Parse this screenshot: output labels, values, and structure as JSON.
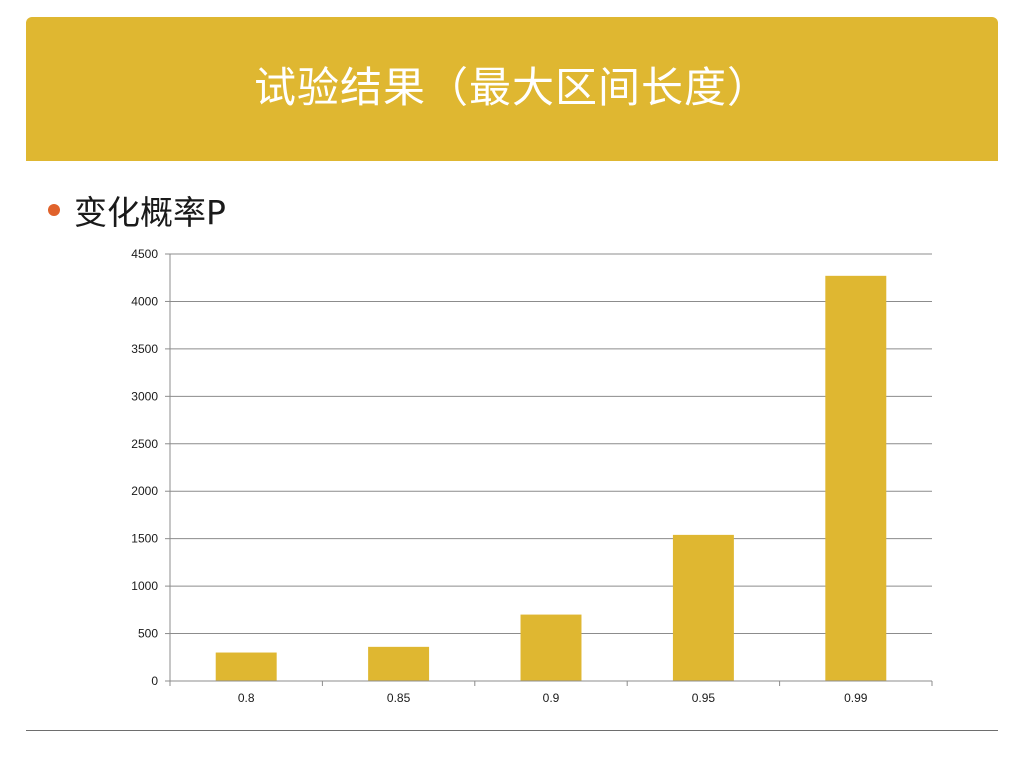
{
  "slide": {
    "title": "试验结果（最大区间长度）",
    "bullet": "变化概率P"
  },
  "colors": {
    "accent": "#dfb731",
    "bullet": "#e0622b",
    "gridline": "#8c8c8c"
  },
  "chart_data": {
    "type": "bar",
    "title": "",
    "xlabel": "",
    "ylabel": "",
    "categories": [
      "0.8",
      "0.85",
      "0.9",
      "0.95",
      "0.99"
    ],
    "values": [
      300,
      360,
      700,
      1540,
      4270
    ],
    "ylim": [
      0,
      4500
    ],
    "yticks": [
      0,
      500,
      1000,
      1500,
      2000,
      2500,
      3000,
      3500,
      4000,
      4500
    ],
    "grid": true,
    "legend": "none"
  }
}
